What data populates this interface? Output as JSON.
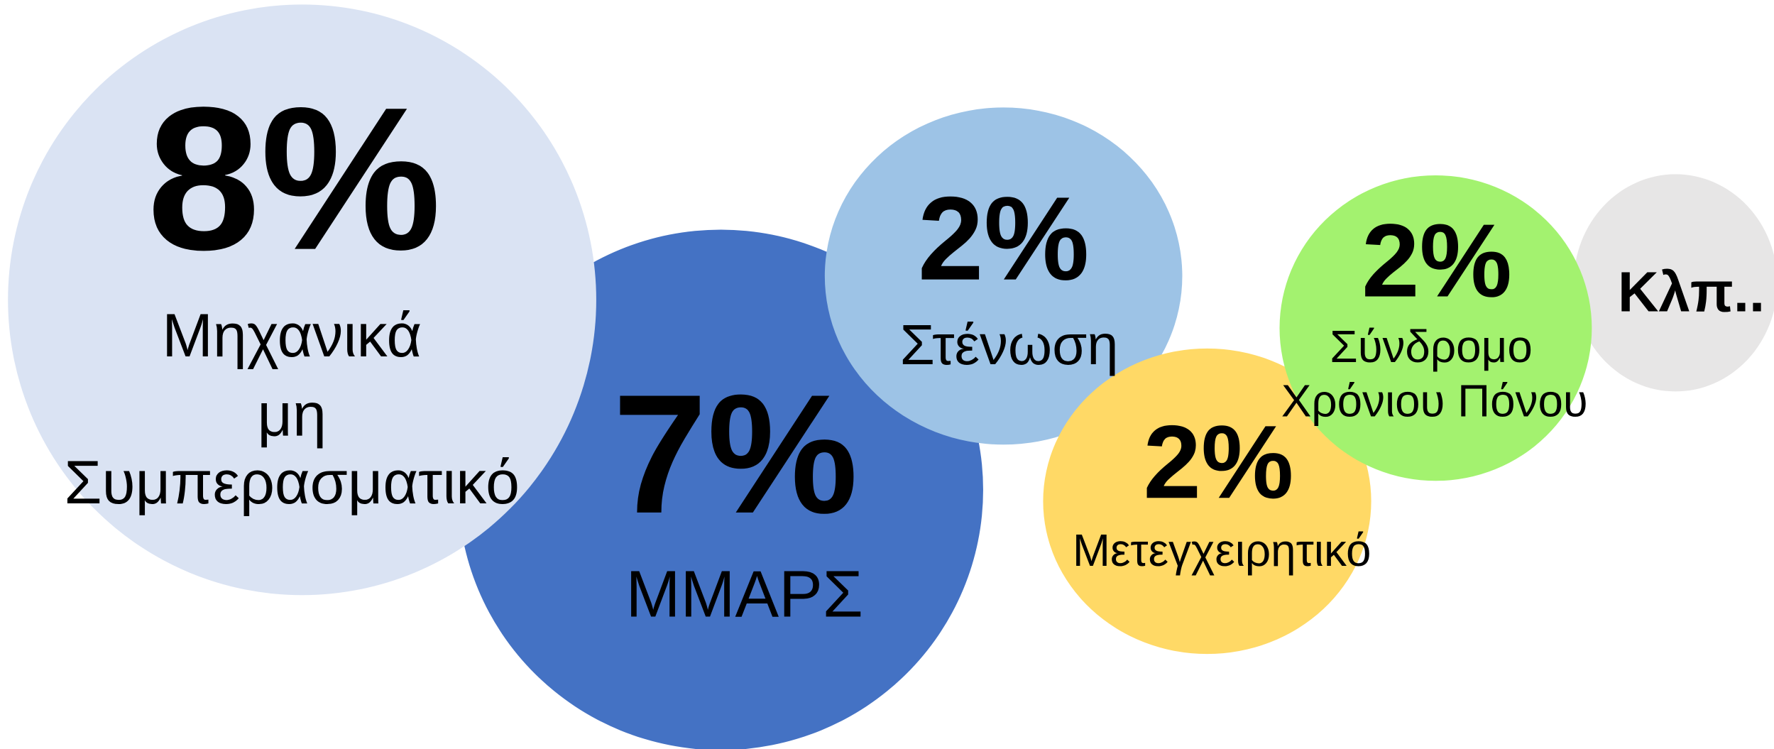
{
  "bubbles": [
    {
      "value": "8%",
      "label": [
        "Μηχανικά",
        "μη",
        "Συμπερασματικό"
      ]
    },
    {
      "value": "7%",
      "label": [
        "ΜΜΑΡΣ"
      ]
    },
    {
      "value": "2%",
      "label": [
        "Στένωση"
      ]
    },
    {
      "value": "2%",
      "label": [
        "Μετεγχειρητικό"
      ]
    },
    {
      "value": "2%",
      "label": [
        "Σύνδρομο",
        "Χρόνιου Πόνου"
      ]
    },
    {
      "label": [
        "Κλπ.."
      ]
    }
  ]
}
